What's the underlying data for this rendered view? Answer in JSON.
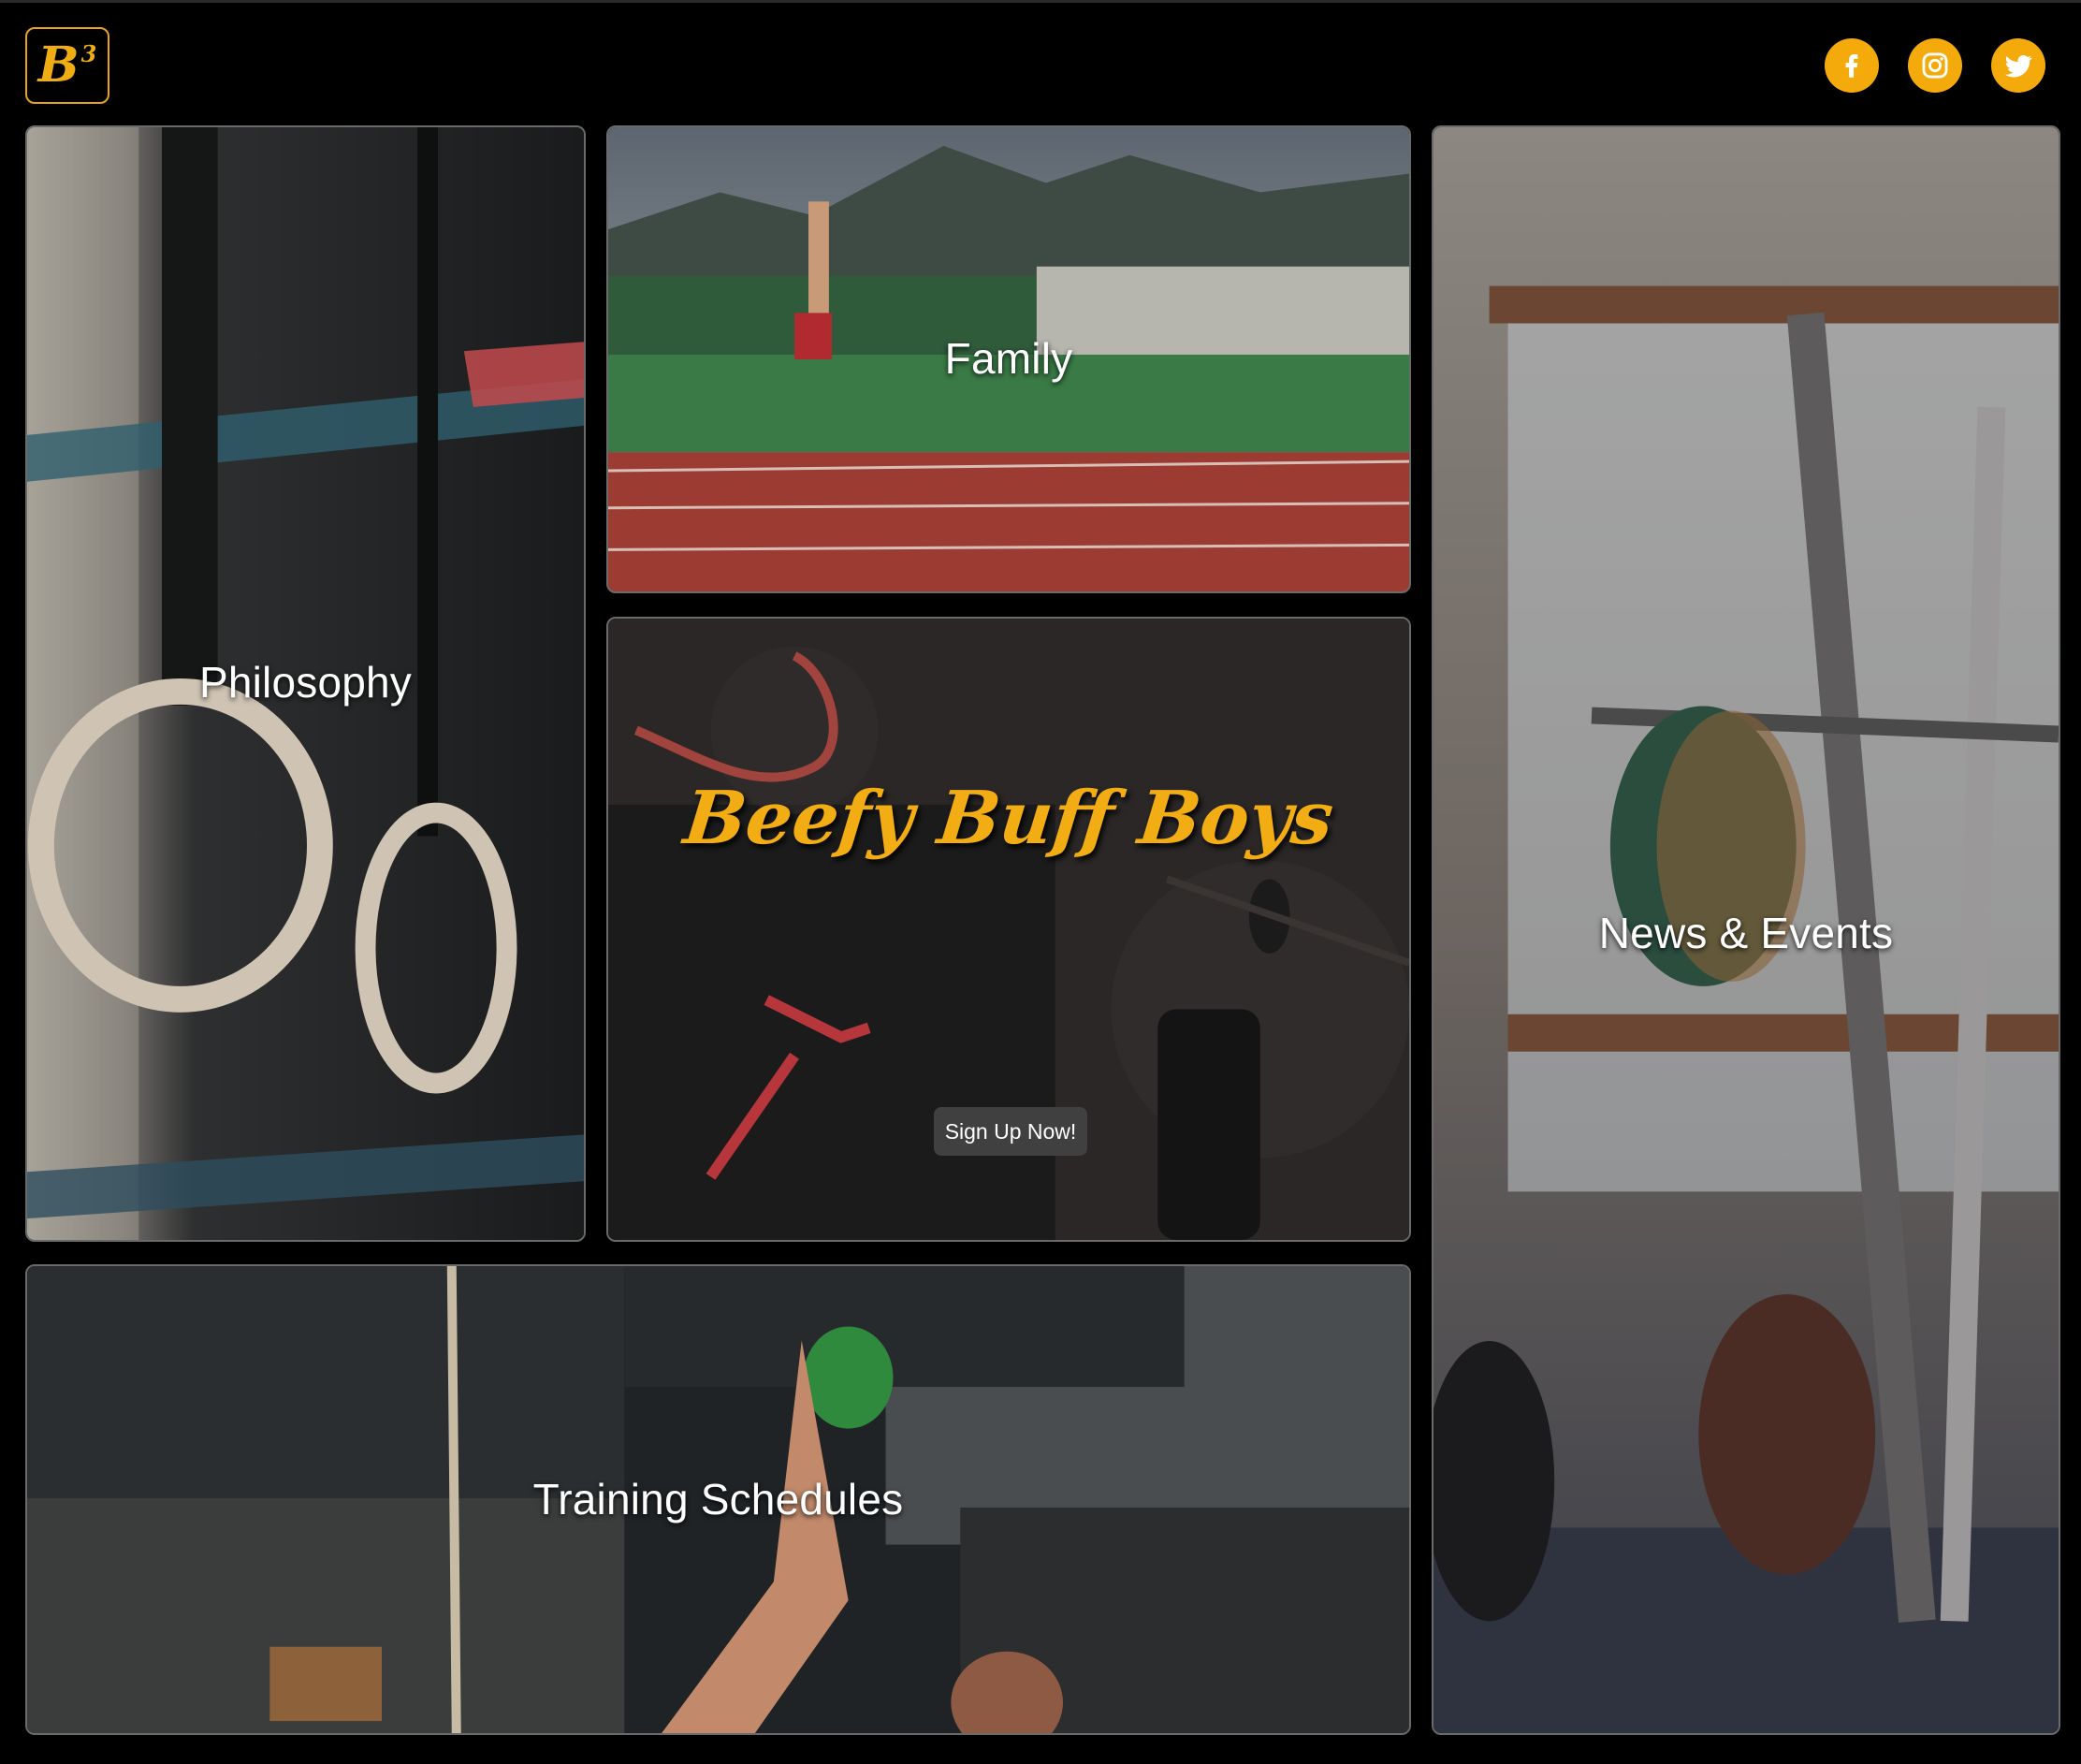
{
  "header": {
    "logo_text": "B",
    "logo_superscript": "3",
    "social": [
      {
        "name": "facebook",
        "icon": "facebook-icon"
      },
      {
        "name": "instagram",
        "icon": "instagram-icon"
      },
      {
        "name": "twitter",
        "icon": "twitter-icon"
      }
    ]
  },
  "tiles": {
    "philosophy": {
      "label": "Philosophy"
    },
    "family": {
      "label": "Family"
    },
    "hero": {
      "brand": "Beefy Buff Boys",
      "cta": "Sign Up Now!"
    },
    "news": {
      "label": "News & Events"
    },
    "training": {
      "label": "Training Schedules"
    }
  },
  "colors": {
    "background": "#000000",
    "accent": "#f4aa0b",
    "tile_border": "#6a6a6a",
    "button_bg": "#404040"
  }
}
